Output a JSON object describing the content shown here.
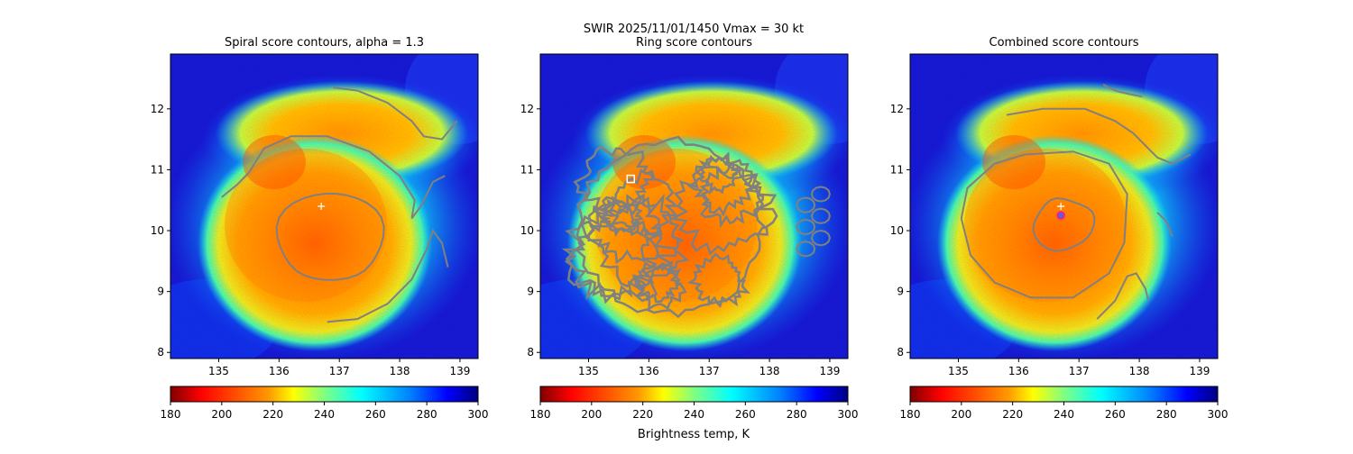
{
  "suptitle": "SWIR  2025/11/01/1450    Vmax = 30 kt",
  "colorbar_label": "Brightness temp, K",
  "colors": {
    "contour": "#808080",
    "center_marker": "#ffffff",
    "combined_marker": "#ff1493",
    "combined_marker_fill": "#6a5acd"
  },
  "chart_data": [
    {
      "type": "heatmap",
      "title": "Spiral score contours, alpha =  1.3",
      "xlim": [
        134.2,
        139.3
      ],
      "ylim": [
        7.9,
        12.9
      ],
      "x_ticks": [
        135,
        136,
        137,
        138,
        139
      ],
      "y_ticks": [
        8,
        9,
        10,
        11,
        12
      ],
      "x_tick_labels": [
        "135",
        "136",
        "137",
        "138",
        "139"
      ],
      "y_tick_labels": [
        "8",
        "9",
        "10",
        "11",
        "12"
      ],
      "colorbar": {
        "range": [
          180,
          300
        ],
        "ticks": [
          180,
          200,
          220,
          240,
          260,
          280,
          300
        ],
        "tick_labels": [
          "180",
          "200",
          "220",
          "240",
          "260",
          "280",
          "300"
        ],
        "cmap": "jet_r"
      },
      "markers": [
        {
          "kind": "plus",
          "x": 136.7,
          "y": 10.4
        }
      ]
    },
    {
      "type": "heatmap",
      "title": "Ring score contours",
      "xlim": [
        134.2,
        139.3
      ],
      "ylim": [
        7.9,
        12.9
      ],
      "x_ticks": [
        135,
        136,
        137,
        138,
        139
      ],
      "y_ticks": [
        8,
        9,
        10,
        11,
        12
      ],
      "x_tick_labels": [
        "135",
        "136",
        "137",
        "138",
        "139"
      ],
      "y_tick_labels": [
        "8",
        "9",
        "10",
        "11",
        "12"
      ],
      "colorbar": {
        "range": [
          180,
          300
        ],
        "ticks": [
          180,
          200,
          220,
          240,
          260,
          280,
          300
        ],
        "tick_labels": [
          "180",
          "200",
          "220",
          "240",
          "260",
          "280",
          "300"
        ],
        "cmap": "jet_r"
      },
      "markers": [
        {
          "kind": "square",
          "x": 135.7,
          "y": 10.85
        }
      ]
    },
    {
      "type": "heatmap",
      "title": "Combined score contours",
      "xlim": [
        134.2,
        139.3
      ],
      "ylim": [
        7.9,
        12.9
      ],
      "x_ticks": [
        135,
        136,
        137,
        138,
        139
      ],
      "y_ticks": [
        8,
        9,
        10,
        11,
        12
      ],
      "x_tick_labels": [
        "135",
        "136",
        "137",
        "138",
        "139"
      ],
      "y_tick_labels": [
        "8",
        "9",
        "10",
        "11",
        "12"
      ],
      "colorbar": {
        "range": [
          180,
          300
        ],
        "ticks": [
          180,
          200,
          220,
          240,
          260,
          280,
          300
        ],
        "tick_labels": [
          "180",
          "200",
          "220",
          "240",
          "260",
          "280",
          "300"
        ],
        "cmap": "jet_r"
      },
      "markers": [
        {
          "kind": "plus",
          "x": 136.7,
          "y": 10.4
        },
        {
          "kind": "circle",
          "x": 136.7,
          "y": 10.25
        }
      ]
    }
  ]
}
